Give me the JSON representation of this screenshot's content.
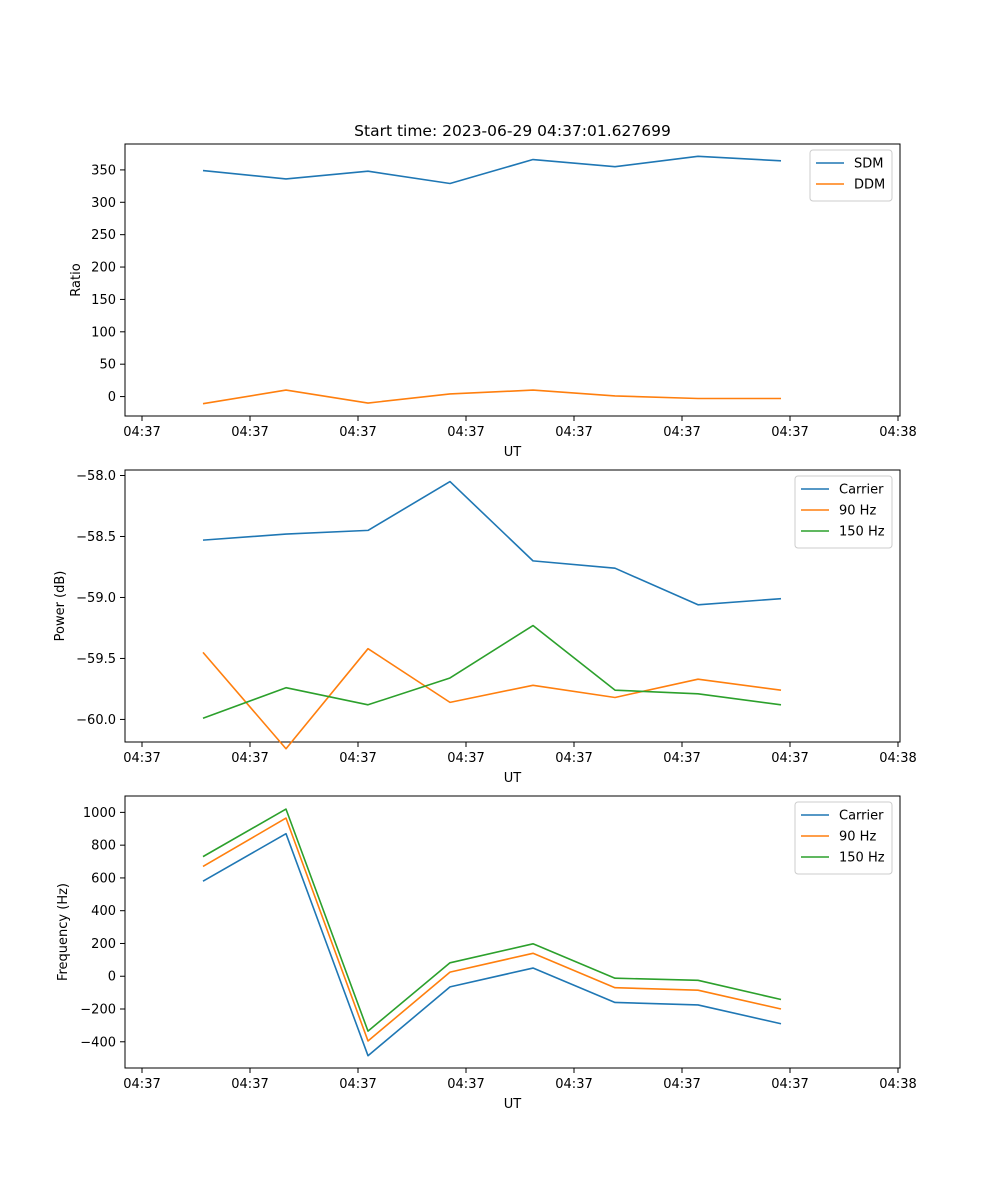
{
  "colors": {
    "blue": "#1f77b4",
    "orange": "#ff7f0e",
    "green": "#2ca02c"
  },
  "chart_data": [
    {
      "type": "line",
      "title": "Start time: 2023-06-29 04:37:01.627699",
      "xlabel": "UT",
      "ylabel": "Ratio",
      "x_tick_labels": [
        "04:37",
        "04:37",
        "04:37",
        "04:37",
        "04:37",
        "04:37",
        "04:37",
        "04:38"
      ],
      "y_ticks": [
        0,
        50,
        100,
        150,
        200,
        250,
        300,
        350
      ],
      "ylim": [
        -30,
        390
      ],
      "legend_position": "top-right",
      "series": [
        {
          "name": "SDM",
          "color": "#1f77b4",
          "values": [
            349,
            336,
            348,
            329,
            366,
            355,
            371,
            364
          ]
        },
        {
          "name": "DDM",
          "color": "#ff7f0e",
          "values": [
            -11,
            10,
            -10,
            4,
            10,
            1,
            -3,
            -3
          ]
        }
      ]
    },
    {
      "type": "line",
      "title": "",
      "xlabel": "UT",
      "ylabel": "Power (dB)",
      "x_tick_labels": [
        "04:37",
        "04:37",
        "04:37",
        "04:37",
        "04:37",
        "04:37",
        "04:37",
        "04:38"
      ],
      "y_ticks": [
        -60.0,
        -59.5,
        -59.0,
        -58.5,
        -58.0
      ],
      "y_tick_labels": [
        "−60.0",
        "−59.5",
        "−59.0",
        "−58.5",
        "−58.0"
      ],
      "ylim": [
        -60.185,
        -57.955
      ],
      "legend_position": "top-right",
      "series": [
        {
          "name": "Carrier",
          "color": "#1f77b4",
          "values": [
            -58.53,
            -58.48,
            -58.45,
            -58.05,
            -58.7,
            -58.76,
            -59.06,
            -59.01
          ]
        },
        {
          "name": "90 Hz",
          "color": "#ff7f0e",
          "values": [
            -59.45,
            -60.24,
            -59.42,
            -59.86,
            -59.72,
            -59.82,
            -59.67,
            -59.76
          ]
        },
        {
          "name": "150 Hz",
          "color": "#2ca02c",
          "values": [
            -59.99,
            -59.74,
            -59.88,
            -59.66,
            -59.23,
            -59.76,
            -59.79,
            -59.88
          ]
        }
      ]
    },
    {
      "type": "line",
      "title": "",
      "xlabel": "UT",
      "ylabel": "Frequency (Hz)",
      "x_tick_labels": [
        "04:37",
        "04:37",
        "04:37",
        "04:37",
        "04:37",
        "04:37",
        "04:37",
        "04:38"
      ],
      "y_ticks": [
        -400,
        -200,
        0,
        200,
        400,
        600,
        800,
        1000
      ],
      "y_tick_labels": [
        "−400",
        "−200",
        "0",
        "200",
        "400",
        "600",
        "800",
        "1000"
      ],
      "ylim": [
        -560,
        1100
      ],
      "legend_position": "top-right",
      "series": [
        {
          "name": "Carrier",
          "color": "#1f77b4",
          "values": [
            580,
            870,
            -485,
            -65,
            50,
            -160,
            -175,
            -290
          ]
        },
        {
          "name": "90 Hz",
          "color": "#ff7f0e",
          "values": [
            670,
            965,
            -395,
            25,
            140,
            -70,
            -85,
            -200
          ]
        },
        {
          "name": "150 Hz",
          "color": "#2ca02c",
          "values": [
            730,
            1020,
            -335,
            82,
            198,
            -12,
            -25,
            -142
          ]
        }
      ]
    }
  ]
}
